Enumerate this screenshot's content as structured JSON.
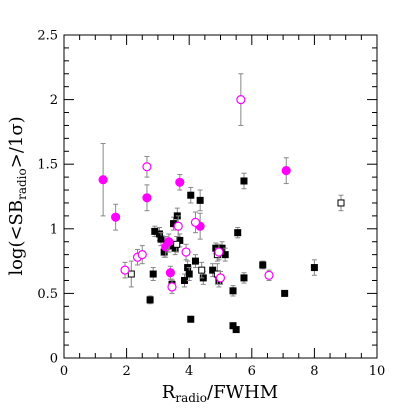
{
  "chart_data": {
    "type": "scatter",
    "title": "",
    "xlabel": "R_radio/FWHM",
    "xlabel_main": "R",
    "xlabel_sub": "radio",
    "xlabel_tail": "/FWHM",
    "ylabel": "log(<SB_radio>/1σ)",
    "ylabel_main": "log(<SB",
    "ylabel_sub": "radio",
    "ylabel_tail": ">/1σ)",
    "xlim": [
      0,
      10
    ],
    "ylim": [
      0,
      2.5
    ],
    "xticks": [
      0,
      2,
      4,
      6,
      8,
      10
    ],
    "xtick_labels": [
      "0",
      "2",
      "4",
      "6",
      "8",
      "10"
    ],
    "yticks": [
      0,
      0.5,
      1,
      1.5,
      2,
      2.5
    ],
    "ytick_labels": [
      "0",
      "0.5",
      "1",
      "1.5",
      "2",
      "2.5"
    ],
    "x_minor_step": 0.5,
    "y_minor_step": 0.1,
    "grid": false,
    "legend": "none",
    "series": [
      {
        "marker": "square",
        "filled": true,
        "color": "#000000",
        "points": [
          {
            "x": 2.75,
            "y": 0.45,
            "err": 0.03
          },
          {
            "x": 2.85,
            "y": 0.65,
            "err": 0.05
          },
          {
            "x": 2.9,
            "y": 0.98,
            "err": 0.04
          },
          {
            "x": 3.05,
            "y": 0.96,
            "err": 0.05
          },
          {
            "x": 3.1,
            "y": 0.92,
            "err": 0.05
          },
          {
            "x": 3.2,
            "y": 0.82,
            "err": 0.04
          },
          {
            "x": 3.35,
            "y": 0.87,
            "err": 0.05
          },
          {
            "x": 3.45,
            "y": 0.57,
            "err": 0.04
          },
          {
            "x": 3.5,
            "y": 1.04,
            "err": 0.05
          },
          {
            "x": 3.55,
            "y": 0.85,
            "err": 0.05
          },
          {
            "x": 3.62,
            "y": 1.1,
            "err": 0.06
          },
          {
            "x": 3.7,
            "y": 0.91,
            "err": 0.05
          },
          {
            "x": 3.85,
            "y": 0.6,
            "err": 0.05
          },
          {
            "x": 3.95,
            "y": 0.7,
            "err": 0.05
          },
          {
            "x": 4.0,
            "y": 0.65,
            "err": 0.05
          },
          {
            "x": 4.05,
            "y": 0.3,
            "err": 0.02
          },
          {
            "x": 4.05,
            "y": 1.26,
            "err": 0.06
          },
          {
            "x": 4.2,
            "y": 0.75,
            "err": 0.05
          },
          {
            "x": 4.35,
            "y": 1.22,
            "err": 0.08
          },
          {
            "x": 4.45,
            "y": 0.62,
            "err": 0.05
          },
          {
            "x": 4.75,
            "y": 0.68,
            "err": 0.05
          },
          {
            "x": 4.85,
            "y": 0.85,
            "err": 0.04
          },
          {
            "x": 4.95,
            "y": 0.6,
            "err": 0.05
          },
          {
            "x": 5.05,
            "y": 0.85,
            "err": 0.05
          },
          {
            "x": 5.15,
            "y": 0.8,
            "err": 0.05
          },
          {
            "x": 5.4,
            "y": 0.52,
            "err": 0.04
          },
          {
            "x": 5.55,
            "y": 0.97,
            "err": 0.04
          },
          {
            "x": 5.4,
            "y": 0.25,
            "err": 0.02
          },
          {
            "x": 5.5,
            "y": 0.22,
            "err": 0.02
          },
          {
            "x": 5.75,
            "y": 0.62,
            "err": 0.04
          },
          {
            "x": 5.75,
            "y": 1.37,
            "err": 0.06
          },
          {
            "x": 6.35,
            "y": 0.72,
            "err": 0.03
          },
          {
            "x": 7.05,
            "y": 0.5,
            "err": 0.02
          },
          {
            "x": 8.0,
            "y": 0.7,
            "err": 0.06
          }
        ]
      },
      {
        "marker": "square",
        "filled": false,
        "color": "#000000",
        "points": [
          {
            "x": 2.15,
            "y": 0.65,
            "err": 0.1
          },
          {
            "x": 3.6,
            "y": 0.88,
            "err": 0.06
          },
          {
            "x": 4.4,
            "y": 0.68,
            "err": 0.06
          },
          {
            "x": 4.9,
            "y": 0.65,
            "err": 0.08
          },
          {
            "x": 4.9,
            "y": 0.8,
            "err": 0.05
          },
          {
            "x": 8.85,
            "y": 1.2,
            "err": 0.06
          }
        ]
      },
      {
        "marker": "circle",
        "filled": true,
        "color": "#ff00ff",
        "points": [
          {
            "x": 1.25,
            "y": 1.38,
            "err": 0.28
          },
          {
            "x": 1.65,
            "y": 1.09,
            "err": 0.1
          },
          {
            "x": 2.65,
            "y": 1.24,
            "err": 0.1
          },
          {
            "x": 3.25,
            "y": 0.86,
            "err": 0.08
          },
          {
            "x": 3.35,
            "y": 0.9,
            "err": 0.06
          },
          {
            "x": 3.4,
            "y": 0.66,
            "err": 0.05
          },
          {
            "x": 3.7,
            "y": 1.36,
            "err": 0.06
          },
          {
            "x": 4.35,
            "y": 1.02,
            "err": 0.1
          },
          {
            "x": 7.1,
            "y": 1.45,
            "err": 0.1
          }
        ]
      },
      {
        "marker": "circle",
        "filled": false,
        "color": "#ff00ff",
        "points": [
          {
            "x": 1.95,
            "y": 0.68,
            "err": 0.06
          },
          {
            "x": 2.35,
            "y": 0.78,
            "err": 0.06
          },
          {
            "x": 2.5,
            "y": 0.8,
            "err": 0.07
          },
          {
            "x": 2.65,
            "y": 1.48,
            "err": 0.08
          },
          {
            "x": 3.45,
            "y": 0.55,
            "err": 0.05
          },
          {
            "x": 3.65,
            "y": 1.02,
            "err": 0.08
          },
          {
            "x": 3.9,
            "y": 0.82,
            "err": 0.06
          },
          {
            "x": 4.2,
            "y": 1.05,
            "err": 0.08
          },
          {
            "x": 4.95,
            "y": 0.82,
            "err": 0.06
          },
          {
            "x": 5.0,
            "y": 0.62,
            "err": 0.05
          },
          {
            "x": 5.65,
            "y": 2.0,
            "err": 0.2
          },
          {
            "x": 6.55,
            "y": 0.64,
            "err": 0.04
          }
        ]
      }
    ]
  }
}
